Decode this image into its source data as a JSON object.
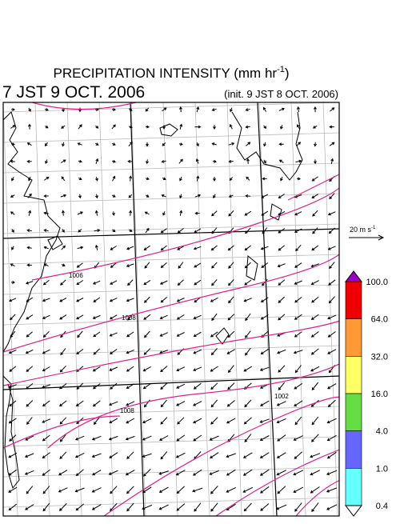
{
  "header": {
    "title": {
      "text": "PRECIPITATION INTENSITY (mm hr",
      "superscript": "-1",
      "close": ")"
    },
    "valid_time": "7 JST 9 OCT. 2006",
    "init_time": "(init. 9 JST 8 OCT. 2006)"
  },
  "vector_scale": {
    "text": "20 m s",
    "superscript": "-1"
  },
  "colorbar": {
    "labels": [
      "100.0",
      "64.0",
      "32.0",
      "16.0",
      "4.0",
      "1.0",
      "0.4"
    ],
    "colors": [
      "#9900cc",
      "#ee0000",
      "#ff9933",
      "#ffff66",
      "#66dd44",
      "#6666ff",
      "#66ffff",
      "#ffffff"
    ]
  },
  "isobar_labels": [
    "1006",
    "1008",
    "1008",
    "1002"
  ]
}
